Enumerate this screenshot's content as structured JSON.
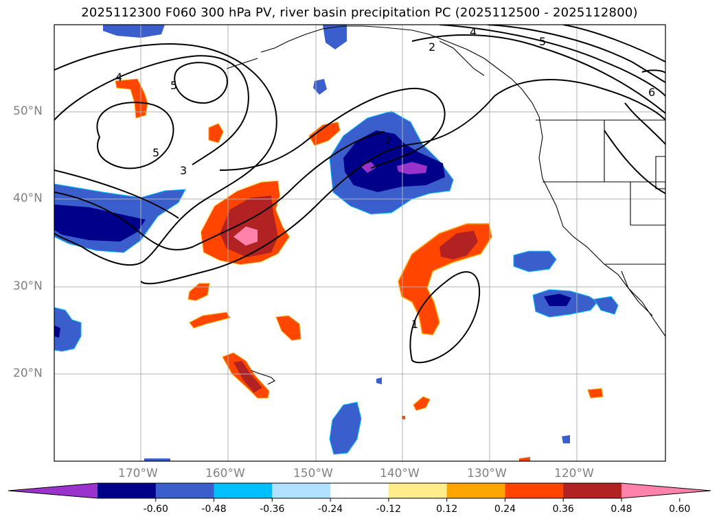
{
  "title": "2025112300 F060 300 hPa PV, river basin precipitation PC (2025112500 - 2025112800)",
  "lat_labels": [
    "50°N",
    "40°N",
    "30°N",
    "20°N"
  ],
  "lon_labels": [
    "170°W",
    "160°W",
    "150°W",
    "140°W",
    "130°W",
    "120°W"
  ],
  "colorbar": {
    "ticks": [
      "-0.60",
      "-0.48",
      "-0.36",
      "-0.24",
      "-0.12",
      "0.12",
      "0.24",
      "0.36",
      "0.48",
      "0.60"
    ],
    "colors": [
      "#9933cc",
      "#00008b",
      "#3a5fcd",
      "#00bfff",
      "#b0e2ff",
      "#ffffff",
      "#ffec8b",
      "#ffa500",
      "#ff4500",
      "#b22222",
      "#ff82ab"
    ]
  },
  "contour_labels": [
    "4",
    "5",
    "5",
    "3",
    "2",
    "4",
    "5",
    "6",
    "2",
    "1"
  ],
  "colors": {
    "grid": "#b0b0b0",
    "contour": "#000000",
    "coast": "#000000"
  }
}
